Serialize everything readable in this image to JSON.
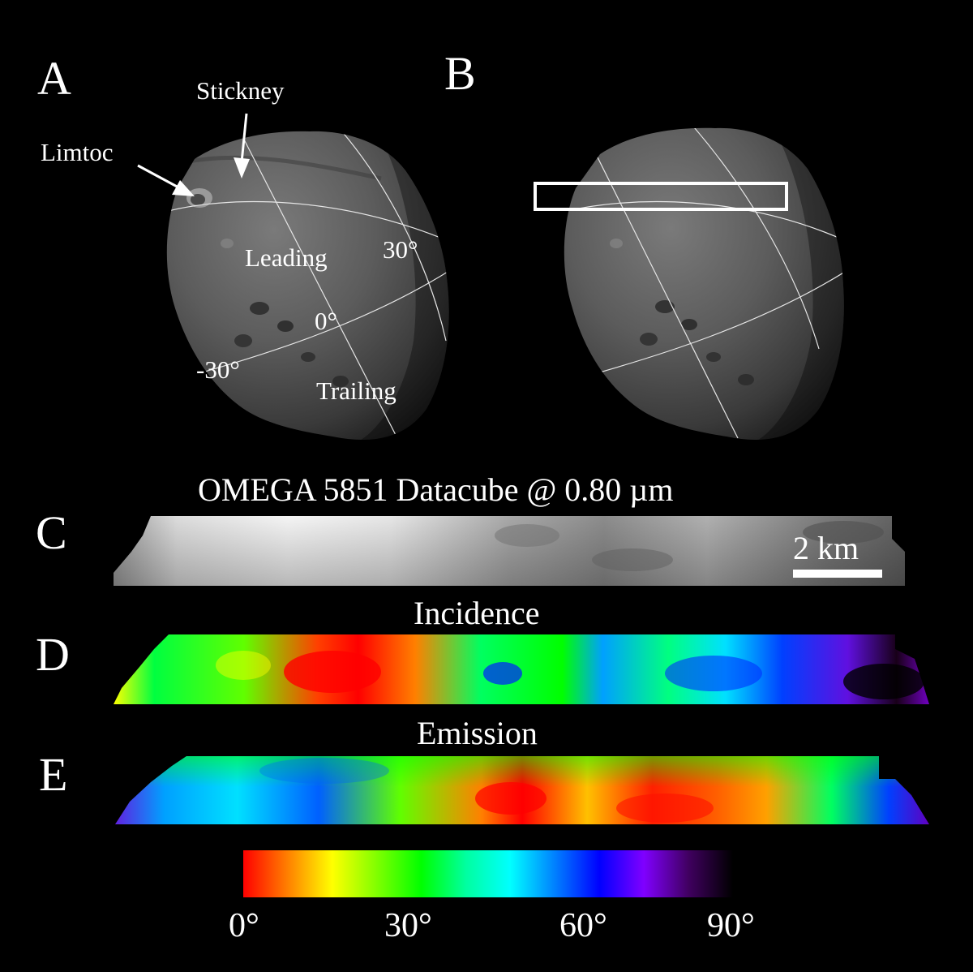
{
  "panels": {
    "a": {
      "letter": "A",
      "labels": {
        "stickney": "Stickney",
        "limtoc": "Limtoc",
        "leading": "Leading",
        "trailing": "Trailing",
        "lat_pos30": "30°",
        "lat_0": "0°",
        "lat_neg30": "-30°"
      }
    },
    "b": {
      "letter": "B"
    },
    "c": {
      "letter": "C",
      "title": "OMEGA 5851 Datacube @ 0.80 µm",
      "scale_bar": {
        "label": "2 km",
        "length_km": 2
      }
    },
    "d": {
      "letter": "D",
      "title": "Incidence"
    },
    "e": {
      "letter": "E",
      "title": "Emission"
    }
  },
  "colorbar": {
    "min_deg": 0,
    "max_deg": 90,
    "ticks": [
      "0°",
      "30°",
      "60°",
      "90°"
    ],
    "stops": [
      "#ff0000",
      "#ff8000",
      "#ffff00",
      "#80ff00",
      "#00ff00",
      "#00ffa0",
      "#00ffff",
      "#0080ff",
      "#0000ff",
      "#8000ff",
      "#400060",
      "#000000"
    ]
  }
}
